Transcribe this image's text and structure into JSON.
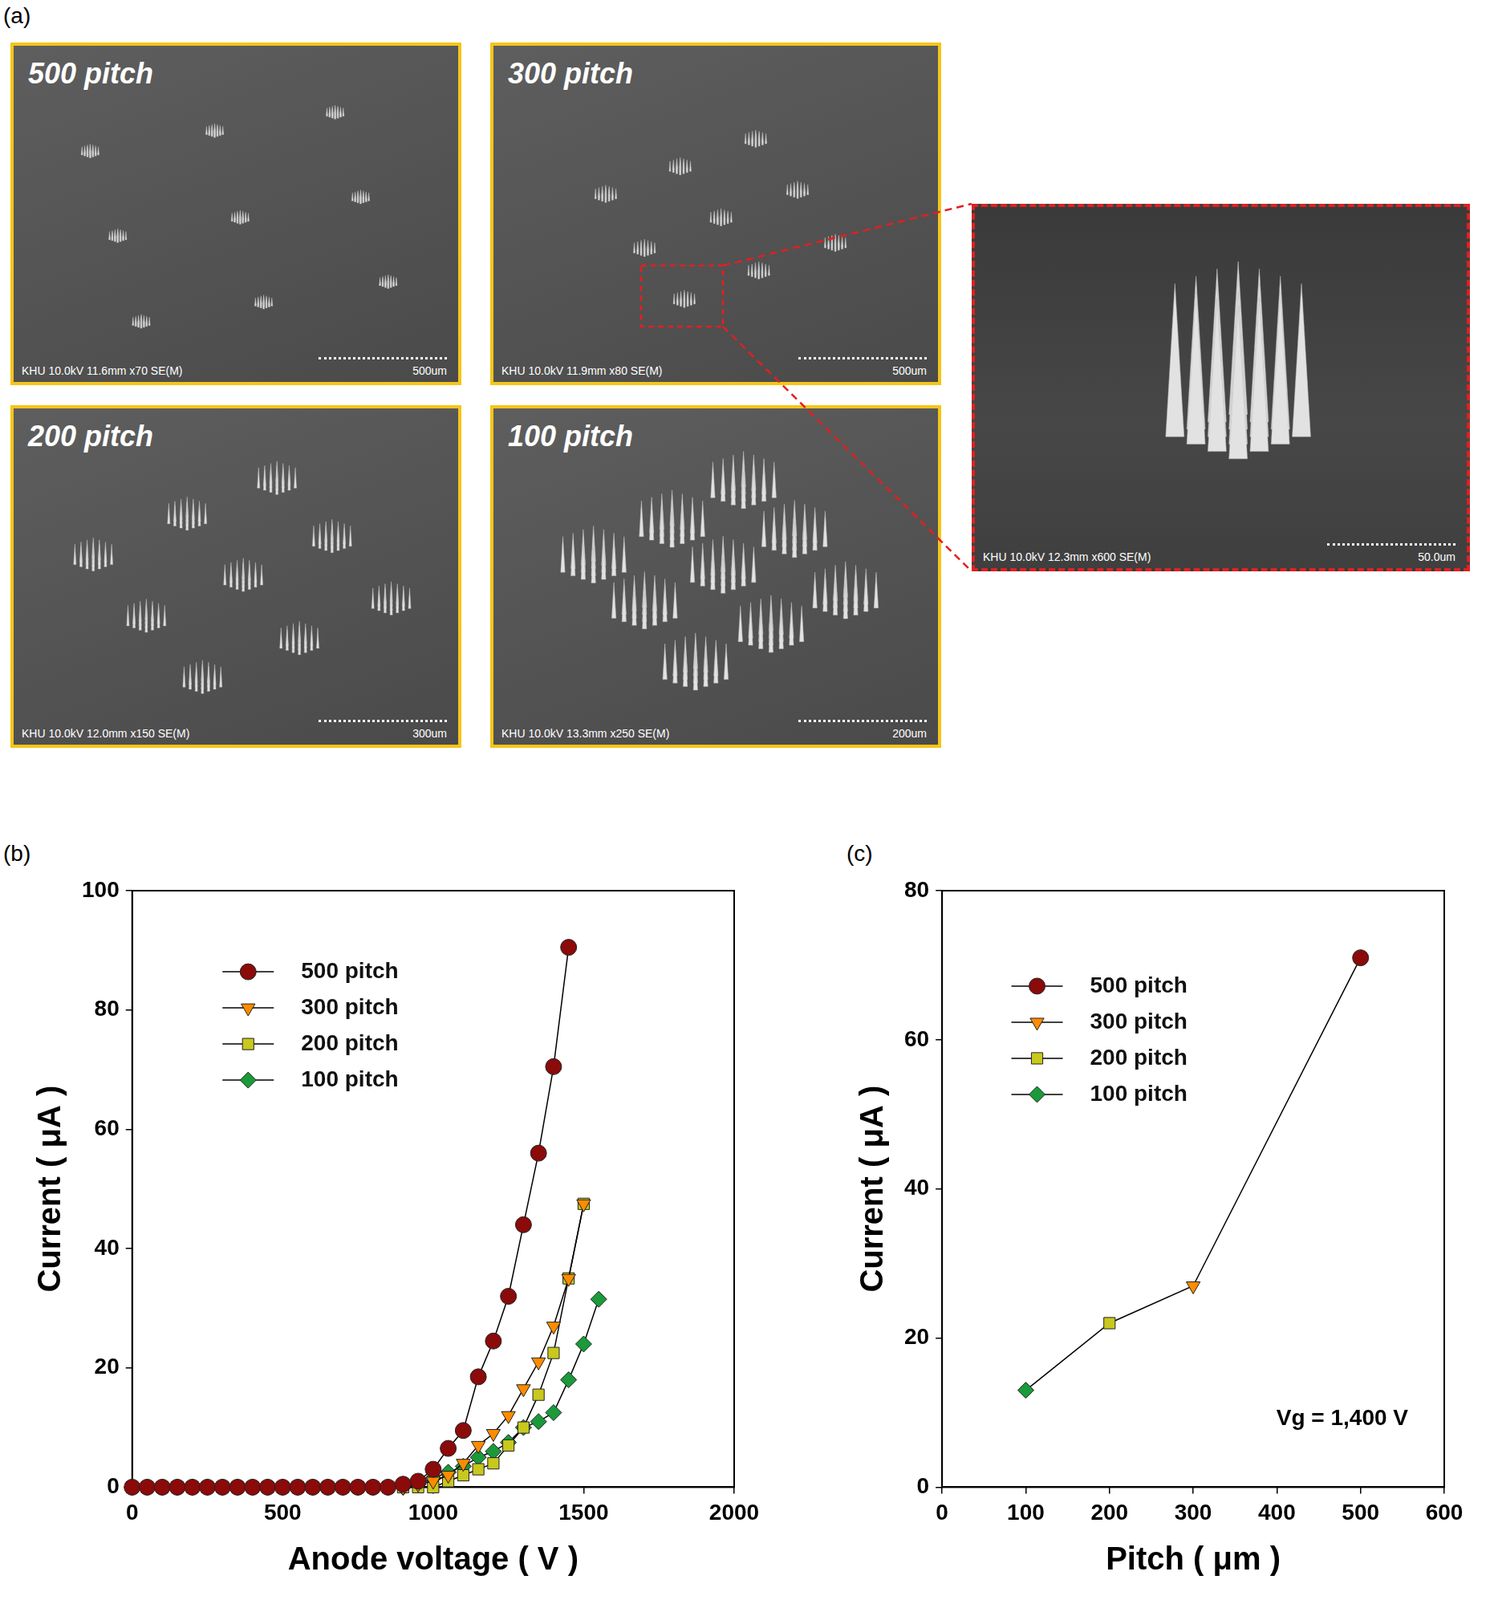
{
  "figure_a": {
    "panel": "(a)",
    "images": [
      {
        "title": "500 pitch",
        "info": "KHU 10.0kV 11.6mm x70 SE(M)",
        "scale": "500um"
      },
      {
        "title": "300 pitch",
        "info": "KHU 10.0kV 11.9mm x80 SE(M)",
        "scale": "500um"
      },
      {
        "title": "200 pitch",
        "info": "KHU 10.0kV 12.0mm x150 SE(M)",
        "scale": "300um"
      },
      {
        "title": "100 pitch",
        "info": "KHU 10.0kV 13.3mm x250 SE(M)",
        "scale": "200um"
      }
    ],
    "zoom": {
      "info": "KHU 10.0kV 12.3mm x600 SE(M)",
      "scale": "50.0um"
    }
  },
  "chart_data": [
    {
      "panel": "(b)",
      "type": "line",
      "x_label": "Anode voltage ( V )",
      "y_label": "Current ( μA )",
      "xlim": [
        0,
        2000
      ],
      "xticks": [
        0,
        500,
        1000,
        1500,
        2000
      ],
      "ylim": [
        0,
        100
      ],
      "yticks": [
        0,
        20,
        40,
        60,
        80,
        100
      ],
      "grid": false,
      "legend": "upper left",
      "series": [
        {
          "name": "500 pitch",
          "color": "#8b0a0a",
          "marker": "circle",
          "line_style": "solid",
          "x": [
            0,
            50,
            100,
            150,
            200,
            250,
            300,
            350,
            400,
            450,
            500,
            550,
            600,
            650,
            700,
            750,
            800,
            850,
            900,
            950,
            1000,
            1050,
            1100,
            1150,
            1200,
            1250,
            1300,
            1350,
            1400,
            1450
          ],
          "values": [
            0,
            0,
            0,
            0,
            0,
            0,
            0,
            0,
            0,
            0,
            0,
            0,
            0,
            0,
            0,
            0,
            0,
            0,
            0.5,
            1,
            3,
            6.5,
            9.5,
            18.5,
            24.5,
            32,
            44,
            56,
            70.5,
            90.5
          ]
        },
        {
          "name": "300 pitch",
          "color": "#ff8c00",
          "marker": "triangle_down",
          "line_style": "solid",
          "x": [
            0,
            50,
            100,
            150,
            200,
            250,
            300,
            350,
            400,
            450,
            500,
            550,
            600,
            650,
            700,
            750,
            800,
            850,
            900,
            950,
            1000,
            1050,
            1100,
            1150,
            1200,
            1250,
            1300,
            1350,
            1400,
            1450,
            1500
          ],
          "values": [
            0,
            0,
            0,
            0,
            0,
            0,
            0,
            0,
            0,
            0,
            0,
            0,
            0,
            0,
            0,
            0,
            0,
            0,
            0,
            0.5,
            1,
            2,
            4,
            7,
            9,
            12,
            16.5,
            21,
            27,
            35,
            47.5
          ]
        },
        {
          "name": "200 pitch",
          "color": "#c8c81e",
          "marker": "square",
          "line_style": "solid",
          "x": [
            0,
            50,
            100,
            150,
            200,
            250,
            300,
            350,
            400,
            450,
            500,
            550,
            600,
            650,
            700,
            750,
            800,
            850,
            900,
            950,
            1000,
            1050,
            1100,
            1150,
            1200,
            1250,
            1300,
            1350,
            1400,
            1450,
            1500
          ],
          "values": [
            0,
            0,
            0,
            0,
            0,
            0,
            0,
            0,
            0,
            0,
            0,
            0,
            0,
            0,
            0,
            0,
            0,
            0,
            0,
            0,
            0,
            1,
            2,
            3,
            4,
            7,
            10,
            15.5,
            22.5,
            35,
            47.5
          ]
        },
        {
          "name": "100 pitch",
          "color": "#1a9a3a",
          "marker": "diamond",
          "line_style": "solid",
          "x": [
            0,
            50,
            100,
            150,
            200,
            250,
            300,
            350,
            400,
            450,
            500,
            550,
            600,
            650,
            700,
            750,
            800,
            850,
            900,
            950,
            1000,
            1050,
            1100,
            1150,
            1200,
            1250,
            1300,
            1350,
            1400,
            1450,
            1500,
            1550
          ],
          "values": [
            0,
            0,
            0,
            0,
            0,
            0,
            0,
            0,
            0,
            0,
            0,
            0,
            0,
            0,
            0,
            0,
            0,
            0,
            0,
            0.5,
            1.5,
            2.5,
            3.5,
            5,
            6,
            7.5,
            10,
            11,
            12.5,
            18,
            24,
            31.5
          ]
        }
      ]
    },
    {
      "panel": "(c)",
      "type": "line",
      "x_label": "Pitch ( μm )",
      "y_label": "Current ( μA )",
      "xlim": [
        0,
        600
      ],
      "xticks": [
        0,
        100,
        200,
        300,
        400,
        500,
        600
      ],
      "ylim": [
        0,
        80
      ],
      "yticks": [
        0,
        20,
        40,
        60,
        80
      ],
      "grid": false,
      "legend": "upper left",
      "line_style": "solid",
      "annotation": "Vg = 1,400 V",
      "series": [
        {
          "name": "500 pitch",
          "color": "#8b0a0a",
          "marker": "circle",
          "x": [
            500
          ],
          "values": [
            71
          ]
        },
        {
          "name": "300 pitch",
          "color": "#ff8c00",
          "marker": "triangle_down",
          "x": [
            300
          ],
          "values": [
            27
          ]
        },
        {
          "name": "200 pitch",
          "color": "#c8c81e",
          "marker": "square",
          "x": [
            200
          ],
          "values": [
            22
          ]
        },
        {
          "name": "100 pitch",
          "color": "#1a9a3a",
          "marker": "diamond",
          "x": [
            100
          ],
          "values": [
            13
          ]
        }
      ]
    }
  ]
}
